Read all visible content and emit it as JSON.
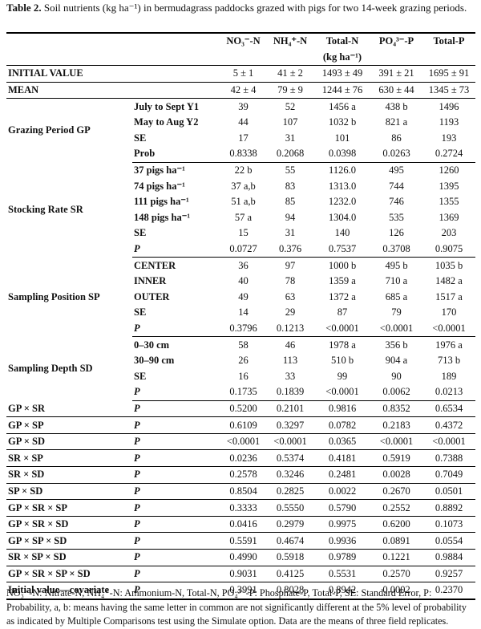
{
  "header": {
    "label": "Table 2.",
    "caption": "Soil nutrients (kg ha⁻¹) in bermudagrass paddocks grazed with pigs for two 14-week grazing periods."
  },
  "table": {
    "columns": [
      "NO₃⁻-N",
      "NH₄⁺-N",
      "Total-N",
      "PO₄³⁻-P",
      "Total-P"
    ],
    "unit": "(kg ha⁻¹)",
    "summary": [
      {
        "label": "INITIAL VALUE",
        "cells": [
          "5 ± 1",
          "41 ± 2",
          "1493 ± 49",
          "391 ± 21",
          "1695 ± 91"
        ]
      },
      {
        "label": "MEAN",
        "cells": [
          "42 ± 4",
          "79 ± 9",
          "1244 ± 76",
          "630 ± 44",
          "1345 ± 73"
        ]
      }
    ],
    "groups": [
      {
        "label": "Grazing Period GP",
        "rows": [
          {
            "sub": "July to Sept Y1",
            "cells": [
              "39",
              "52",
              "1456 a",
              "438 b",
              "1496"
            ]
          },
          {
            "sub": "May to Aug Y2",
            "cells": [
              "44",
              "107",
              "1032 b",
              "821 a",
              "1193"
            ]
          },
          {
            "sub": "SE",
            "cells": [
              "17",
              "31",
              "101",
              "86",
              "193"
            ]
          },
          {
            "sub": "Prob",
            "cells": [
              "0.8338",
              "0.2068",
              "0.0398",
              "0.0263",
              "0.2724"
            ]
          }
        ]
      },
      {
        "label": "Stocking Rate SR",
        "rows": [
          {
            "sub": "37 pigs ha⁻¹",
            "cells": [
              "22 b",
              "55",
              "1126.0",
              "495",
              "1260"
            ]
          },
          {
            "sub": "74 pigs ha⁻¹",
            "cells": [
              "37 a,b",
              "83",
              "1313.0",
              "744",
              "1395"
            ]
          },
          {
            "sub": "111 pigs ha⁻¹",
            "cells": [
              "51 a,b",
              "85",
              "1232.0",
              "746",
              "1355"
            ]
          },
          {
            "sub": "148 pigs ha⁻¹",
            "cells": [
              "57 a",
              "94",
              "1304.0",
              "535",
              "1369"
            ]
          },
          {
            "sub": "SE",
            "cells": [
              "15",
              "31",
              "140",
              "126",
              "203"
            ]
          },
          {
            "sub": "P",
            "cells": [
              "0.0727",
              "0.376",
              "0.7537",
              "0.3708",
              "0.9075"
            ]
          }
        ]
      },
      {
        "label": "Sampling Position SP",
        "rows": [
          {
            "sub": "CENTER",
            "cells": [
              "36",
              "97",
              "1000 b",
              "495 b",
              "1035 b"
            ]
          },
          {
            "sub": "INNER",
            "cells": [
              "40",
              "78",
              "1359 a",
              "710 a",
              "1482 a"
            ]
          },
          {
            "sub": "OUTER",
            "cells": [
              "49",
              "63",
              "1372 a",
              "685 a",
              "1517 a"
            ]
          },
          {
            "sub": "SE",
            "cells": [
              "14",
              "29",
              "87",
              "79",
              "170"
            ]
          },
          {
            "sub": "P",
            "cells": [
              "0.3796",
              "0.1213",
              "<0.0001",
              "<0.0001",
              "<0.0001"
            ]
          }
        ]
      },
      {
        "label": "Sampling Depth SD",
        "rows": [
          {
            "sub": "0–30 cm",
            "cells": [
              "58",
              "46",
              "1978 a",
              "356 b",
              "1976 a"
            ]
          },
          {
            "sub": "30–90 cm",
            "cells": [
              "26",
              "113",
              "510 b",
              "904 a",
              "713 b"
            ]
          },
          {
            "sub": "SE",
            "cells": [
              "16",
              "33",
              "99",
              "90",
              "189"
            ]
          },
          {
            "sub": "P",
            "cells": [
              "0.1735",
              "0.1839",
              "<0.0001",
              "0.0062",
              "0.0213"
            ]
          }
        ]
      }
    ],
    "interactions": [
      {
        "label": "GP × SR",
        "sub": "P",
        "cells": [
          "0.5200",
          "0.2101",
          "0.9816",
          "0.8352",
          "0.6534"
        ]
      },
      {
        "label": "GP × SP",
        "sub": "P",
        "cells": [
          "0.6109",
          "0.3297",
          "0.0782",
          "0.2183",
          "0.4372"
        ]
      },
      {
        "label": "GP × SD",
        "sub": "P",
        "cells": [
          "<0.0001",
          "<0.0001",
          "0.0365",
          "<0.0001",
          "<0.0001"
        ]
      },
      {
        "label": "SR × SP",
        "sub": "P",
        "cells": [
          "0.0236",
          "0.5374",
          "0.4181",
          "0.5919",
          "0.7388"
        ]
      },
      {
        "label": "SR × SD",
        "sub": "P",
        "cells": [
          "0.2578",
          "0.3246",
          "0.2481",
          "0.0028",
          "0.7049"
        ]
      },
      {
        "label": "SP × SD",
        "sub": "P",
        "cells": [
          "0.8504",
          "0.2825",
          "0.0022",
          "0.2670",
          "0.0501"
        ]
      },
      {
        "label": "GP × SR × SP",
        "sub": "P",
        "cells": [
          "0.3333",
          "0.5550",
          "0.5790",
          "0.2552",
          "0.8892"
        ]
      },
      {
        "label": "GP × SR × SD",
        "sub": "P",
        "cells": [
          "0.0416",
          "0.2979",
          "0.9975",
          "0.6200",
          "0.1073"
        ]
      },
      {
        "label": "GP × SP × SD",
        "sub": "P",
        "cells": [
          "0.5591",
          "0.4674",
          "0.9936",
          "0.0891",
          "0.0554"
        ]
      },
      {
        "label": "SR × SP × SD",
        "sub": "P",
        "cells": [
          "0.4990",
          "0.5918",
          "0.9789",
          "0.1221",
          "0.9884"
        ]
      },
      {
        "label": "GP × SR × SP × SD",
        "sub": "P",
        "cells": [
          "0.9031",
          "0.4125",
          "0.5531",
          "0.2570",
          "0.9257"
        ]
      },
      {
        "label": "Initial value—covariate",
        "sub": "P",
        "cells": [
          "0.3991",
          "0.8028",
          "0.8942",
          "0.0002",
          "0.2370"
        ]
      }
    ]
  },
  "footer": {
    "note": "NO₃⁻-N: Nitrate-N, NH₄⁺-N: Ammonium-N, Total-N, PO₄³⁻-P: Phosphate-P, Total-P, SE: Standard Error, P: Probability, a, b: means having the same letter in common are not significantly different at the 5% level of probability as indicated by Multiple Comparisons test using the Simulate option. Data are the means of three field replicates."
  }
}
